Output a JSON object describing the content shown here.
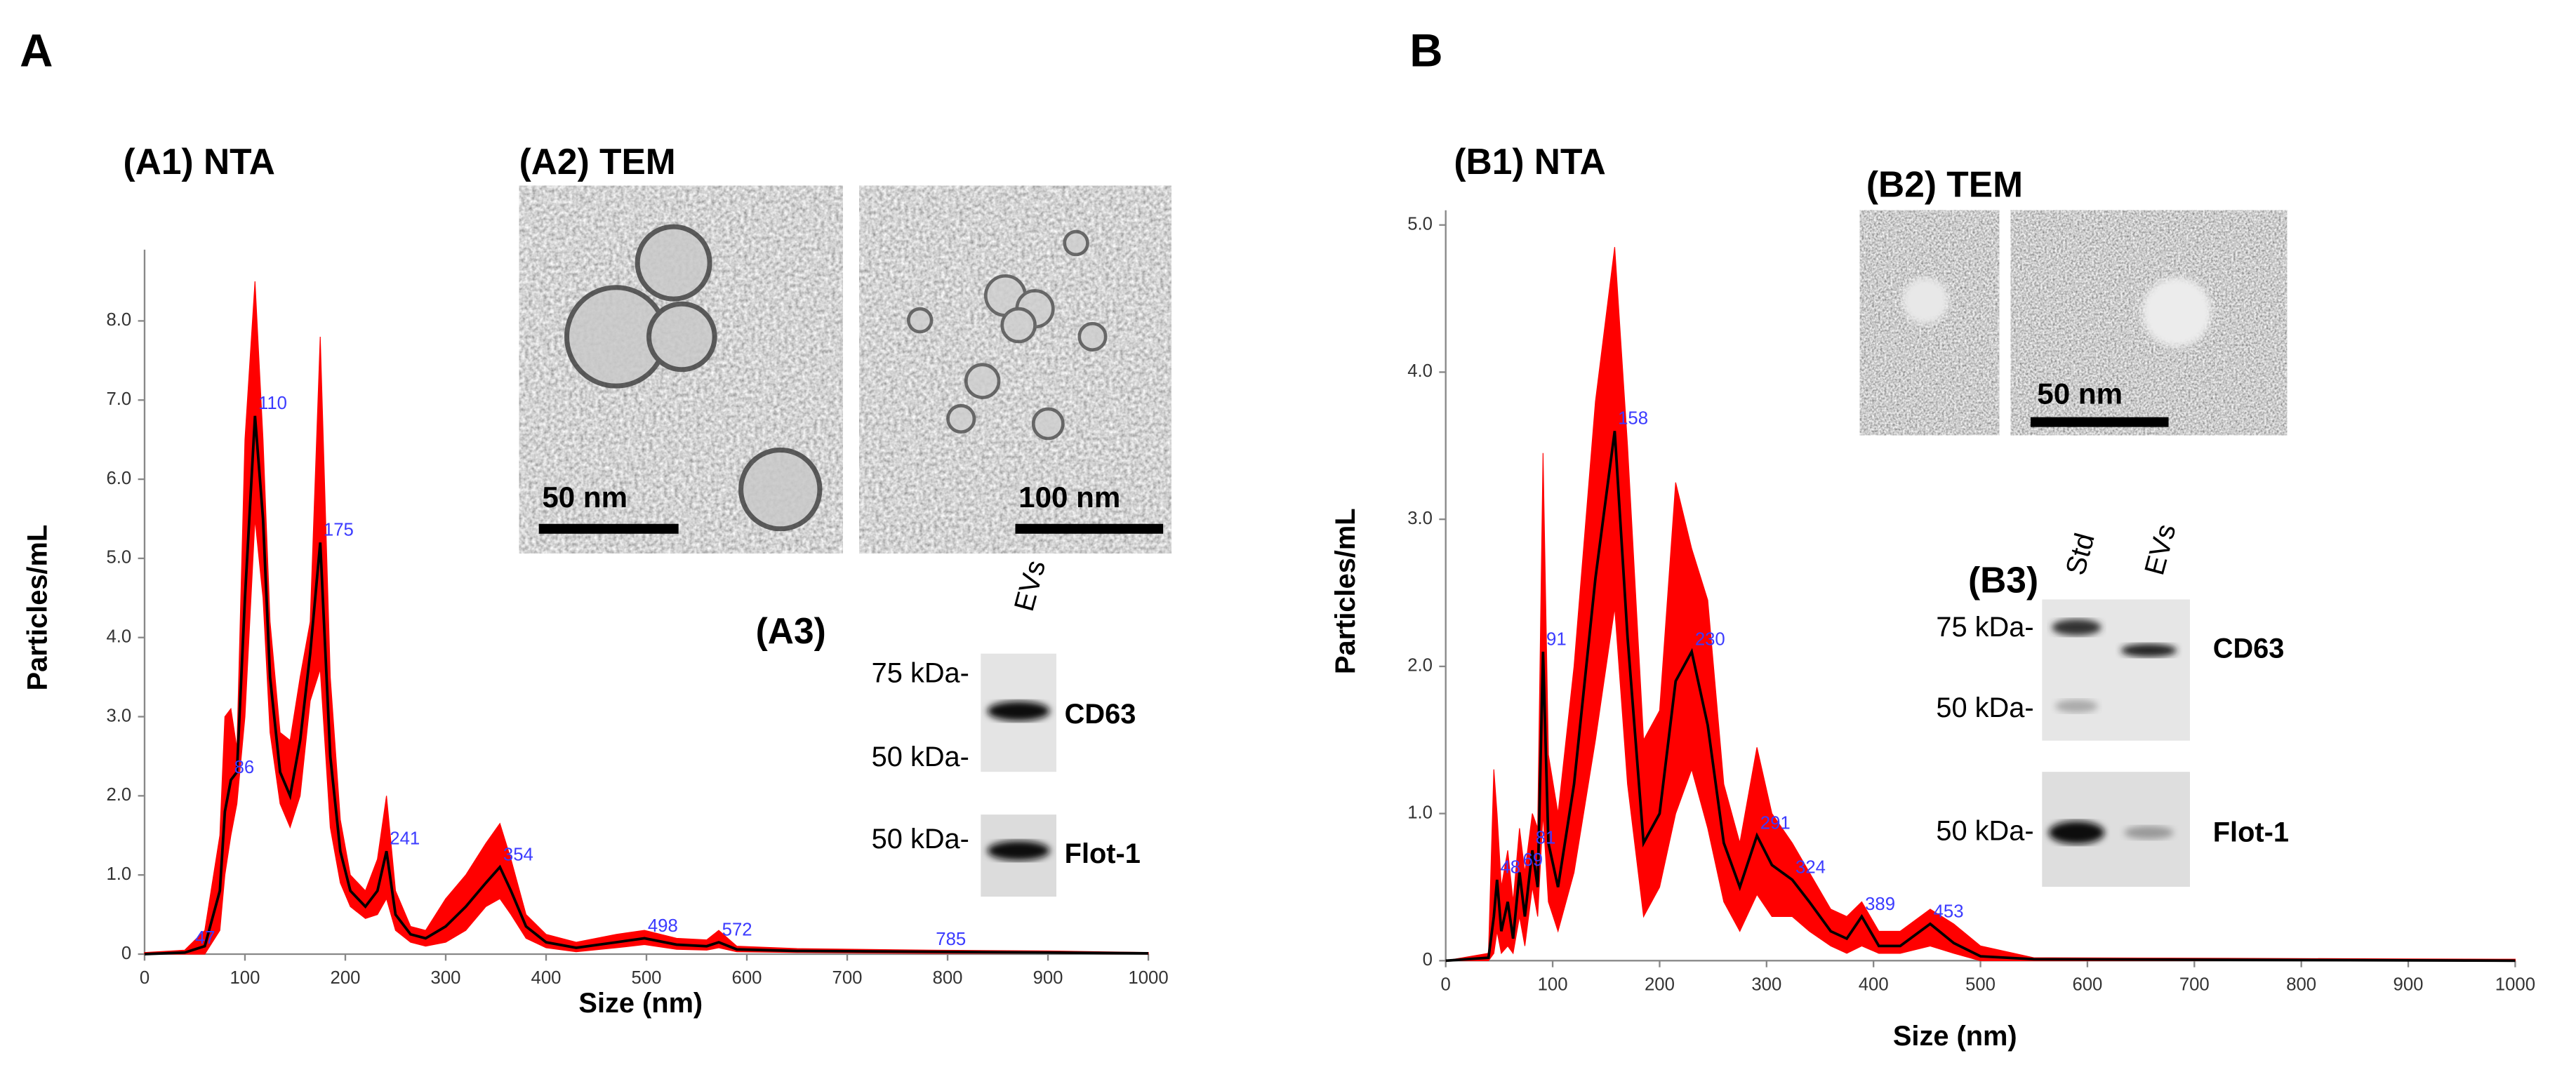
{
  "chart_data": [
    {
      "type": "line",
      "title": "(A1) NTA",
      "x_label": "Size (nm)",
      "y_label": "Particles/mL",
      "x": [
        0,
        40,
        60,
        75,
        80,
        86,
        92,
        100,
        110,
        118,
        125,
        135,
        145,
        155,
        165,
        175,
        185,
        195,
        205,
        220,
        232,
        241,
        250,
        265,
        280,
        300,
        320,
        340,
        354,
        365,
        380,
        400,
        430,
        470,
        498,
        530,
        560,
        572,
        590,
        650,
        785,
        900,
        1000
      ],
      "series": [
        {
          "color": "#000000",
          "values": [
            0,
            0.02,
            0.1,
            0.8,
            1.8,
            2.2,
            2.3,
            4.5,
            6.8,
            5.5,
            3.5,
            2.3,
            2.0,
            2.7,
            3.8,
            5.2,
            2.5,
            1.3,
            0.8,
            0.6,
            0.8,
            1.3,
            0.5,
            0.25,
            0.2,
            0.35,
            0.6,
            0.9,
            1.1,
            0.8,
            0.35,
            0.15,
            0.08,
            0.15,
            0.2,
            0.12,
            0.1,
            0.15,
            0.06,
            0.04,
            0.03,
            0.02,
            0.01
          ]
        }
      ],
      "band": {
        "color": "#ff0000",
        "upper": [
          0.02,
          0.05,
          0.3,
          1.5,
          3.0,
          3.1,
          2.6,
          6.5,
          8.5,
          6.5,
          4.2,
          2.8,
          2.7,
          3.5,
          4.2,
          7.8,
          3.5,
          1.7,
          1.0,
          0.8,
          1.2,
          2.0,
          0.8,
          0.35,
          0.3,
          0.7,
          1.0,
          1.4,
          1.65,
          1.2,
          0.5,
          0.25,
          0.15,
          0.25,
          0.3,
          0.2,
          0.18,
          0.3,
          0.1,
          0.07,
          0.05,
          0.04,
          0.02
        ],
        "lower": [
          0,
          0,
          0,
          0.3,
          1.0,
          1.5,
          1.9,
          3.0,
          5.5,
          4.5,
          2.8,
          1.9,
          1.6,
          2.0,
          3.2,
          3.6,
          1.6,
          0.9,
          0.6,
          0.45,
          0.5,
          0.7,
          0.3,
          0.15,
          0.1,
          0.15,
          0.3,
          0.6,
          0.7,
          0.5,
          0.2,
          0.08,
          0.03,
          0.08,
          0.12,
          0.06,
          0.05,
          0.08,
          0.03,
          0.02,
          0.01,
          0.01,
          0
        ]
      },
      "peaks": [
        47,
        86,
        110,
        175,
        241,
        354,
        498,
        572,
        785
      ],
      "peak_color": "#3b3bff",
      "xlim": [
        0,
        1000
      ],
      "xticks": [
        0,
        100,
        200,
        300,
        400,
        500,
        600,
        700,
        800,
        900,
        1000
      ],
      "ylim": [
        0,
        8.9
      ],
      "yticks": [
        0,
        {
          "value": 1,
          "label": "1.0"
        },
        {
          "value": 2,
          "label": "2.0"
        },
        {
          "value": 3,
          "label": "3.0"
        },
        {
          "value": 4,
          "label": "4.0"
        },
        {
          "value": 5,
          "label": "5.0"
        },
        {
          "value": 6,
          "label": "6.0"
        },
        {
          "value": 7,
          "label": "7.0"
        },
        {
          "value": 8,
          "label": "8.0"
        }
      ],
      "grid": false
    },
    {
      "type": "line",
      "title": "(B1) NTA",
      "x_label": "Size (nm)",
      "y_label": "Particles/mL",
      "x": [
        0,
        40,
        45,
        48,
        52,
        58,
        63,
        69,
        74,
        81,
        86,
        91,
        96,
        105,
        120,
        140,
        158,
        170,
        185,
        200,
        215,
        230,
        245,
        260,
        275,
        291,
        305,
        324,
        340,
        360,
        375,
        389,
        405,
        425,
        453,
        475,
        500,
        550,
        1000
      ],
      "series": [
        {
          "color": "#000000",
          "values": [
            0,
            0.02,
            0.3,
            0.55,
            0.2,
            0.4,
            0.15,
            0.6,
            0.3,
            0.75,
            0.5,
            2.1,
            0.8,
            0.5,
            1.2,
            2.6,
            3.6,
            2.2,
            0.8,
            1.0,
            1.9,
            2.1,
            1.6,
            0.8,
            0.5,
            0.85,
            0.65,
            0.55,
            0.4,
            0.2,
            0.15,
            0.3,
            0.1,
            0.1,
            0.25,
            0.12,
            0.03,
            0.01,
            0
          ]
        }
      ],
      "band": {
        "color": "#ff0000",
        "upper": [
          0,
          0.05,
          1.3,
          1.0,
          0.5,
          0.75,
          0.4,
          0.9,
          0.6,
          1.0,
          0.9,
          3.45,
          1.4,
          1.0,
          2.0,
          3.8,
          4.85,
          3.5,
          1.5,
          1.7,
          3.25,
          2.8,
          2.45,
          1.2,
          0.8,
          1.45,
          1.0,
          0.8,
          0.6,
          0.35,
          0.3,
          0.4,
          0.2,
          0.2,
          0.35,
          0.25,
          0.1,
          0.02,
          0.01
        ],
        "lower": [
          0,
          0,
          0.05,
          0.2,
          0.05,
          0.1,
          0.05,
          0.3,
          0.1,
          0.5,
          0.3,
          1.0,
          0.4,
          0.2,
          0.6,
          1.5,
          2.4,
          1.2,
          0.3,
          0.5,
          1.0,
          1.3,
          0.9,
          0.4,
          0.2,
          0.45,
          0.3,
          0.3,
          0.2,
          0.1,
          0.05,
          0.1,
          0.05,
          0.05,
          0.1,
          0.05,
          0,
          0,
          0
        ]
      },
      "peaks": [
        48,
        69,
        81,
        91,
        158,
        230,
        291,
        324,
        389,
        453
      ],
      "peak_color": "#3b3bff",
      "xlim": [
        0,
        1000
      ],
      "xticks": [
        0,
        100,
        200,
        300,
        400,
        500,
        600,
        700,
        800,
        900,
        1000
      ],
      "ylim": [
        0,
        5.1
      ],
      "yticks": [
        0,
        {
          "value": 1,
          "label": "1.0"
        },
        {
          "value": 2,
          "label": "2.0"
        },
        {
          "value": 3,
          "label": "3.0"
        },
        {
          "value": 4,
          "label": "4.0"
        },
        {
          "value": 5,
          "label": "5.0"
        }
      ],
      "grid": false
    }
  ],
  "figure": {
    "panel_labels": [
      "A",
      "B"
    ],
    "tem": [
      {
        "title": "(A2) TEM",
        "scale_bars": [
          "50 nm",
          "100 nm"
        ]
      },
      {
        "title": "(B2) TEM",
        "scale_bars": [
          "50 nm"
        ]
      }
    ],
    "blots": [
      {
        "title": "(A3)",
        "lanes": [
          "EVs"
        ],
        "markers": [
          "75 kDa-",
          "50 kDa-",
          "50 kDa-"
        ],
        "proteins": [
          "CD63",
          "Flot-1"
        ]
      },
      {
        "title": "(B3)",
        "lanes": [
          "Std",
          "EVs"
        ],
        "markers": [
          "75 kDa-",
          "50 kDa-",
          "50 kDa-"
        ],
        "proteins": [
          "CD63",
          "Flot-1"
        ]
      }
    ]
  }
}
